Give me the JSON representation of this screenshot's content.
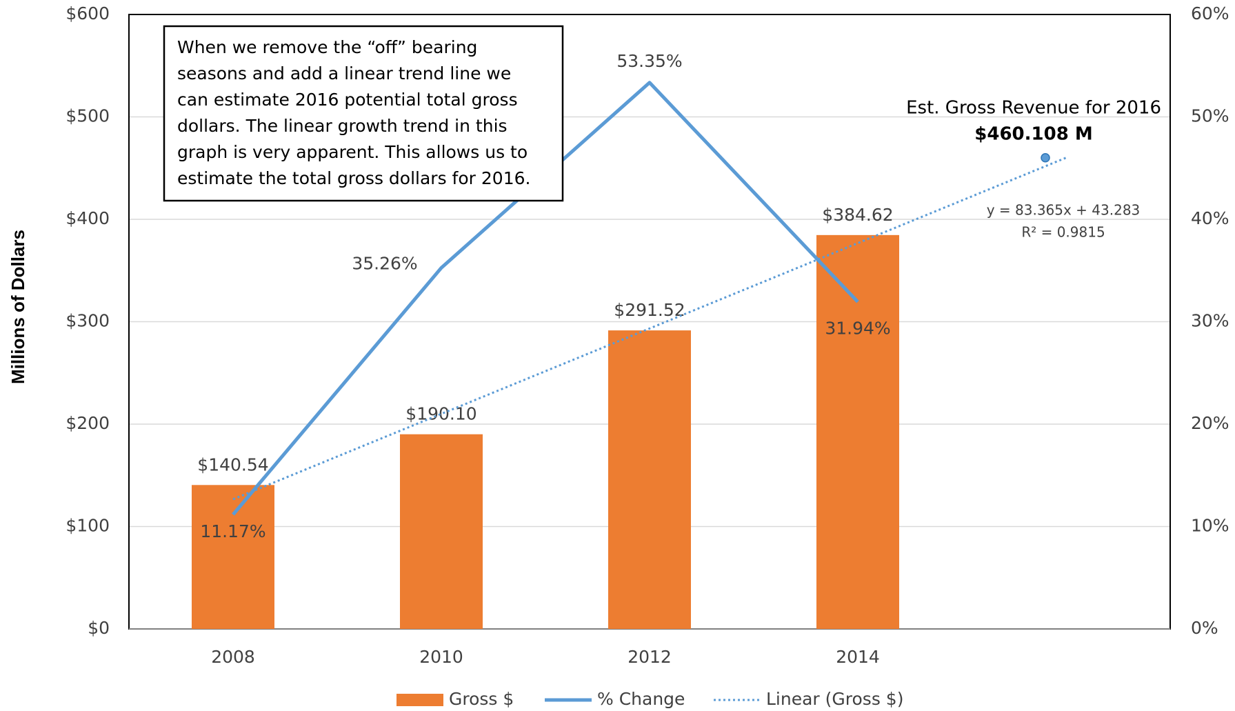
{
  "chart_data": {
    "type": "bar",
    "y_label": "Millions of Dollars",
    "categories": [
      "2008",
      "2010",
      "2012",
      "2014",
      null
    ],
    "series": [
      {
        "name": "Gross $",
        "type": "bar",
        "color": "#ed7d31",
        "values": [
          140.54,
          190.1,
          291.52,
          384.62,
          null
        ],
        "value_labels": [
          "$140.54",
          "$190.10",
          "$291.52",
          "$384.62",
          null
        ]
      },
      {
        "name": "% Change",
        "type": "line",
        "axis": "y2",
        "color": "#5b9bd5",
        "values": [
          11.17,
          35.26,
          53.35,
          31.94,
          null
        ],
        "value_labels": [
          "11.17%",
          "35.26%",
          "53.35%",
          "31.94%",
          null
        ]
      },
      {
        "name": "Linear (Gross $)",
        "type": "trend",
        "color": "#5b9bd5",
        "values": [
          126.648,
          210.013,
          293.378,
          376.743,
          460.108
        ]
      }
    ],
    "ylim": [
      0,
      600
    ],
    "yticks": [
      {
        "value": 0,
        "label": "$0"
      },
      {
        "value": 100,
        "label": "$100"
      },
      {
        "value": 200,
        "label": "$200"
      },
      {
        "value": 300,
        "label": "$300"
      },
      {
        "value": 400,
        "label": "$400"
      },
      {
        "value": 500,
        "label": "$500"
      },
      {
        "value": 600,
        "label": "$600"
      }
    ],
    "y2lim": [
      0,
      60
    ],
    "y2ticks": [
      {
        "value": 0,
        "label": "0%"
      },
      {
        "value": 10,
        "label": "10%"
      },
      {
        "value": 20,
        "label": "20%"
      },
      {
        "value": 30,
        "label": "30%"
      },
      {
        "value": 40,
        "label": "40%"
      },
      {
        "value": 50,
        "label": "50%"
      },
      {
        "value": 60,
        "label": "60%"
      }
    ],
    "grid": true,
    "legend": "bottom",
    "estimate": {
      "label": "Est. Gross Revenue for 2016",
      "value": 460.108,
      "value_label": "$460.108 M"
    },
    "equation": "y = 83.365x + 43.283",
    "r_squared": "R² = 0.9815",
    "note_lines": [
      "When we remove the “off” bearing",
      "seasons and add a linear trend line we",
      "can estimate 2016 potential total gross",
      "dollars.  The linear growth trend in this",
      "graph is very apparent.  This allows us to",
      "estimate the total gross dollars for 2016."
    ]
  }
}
